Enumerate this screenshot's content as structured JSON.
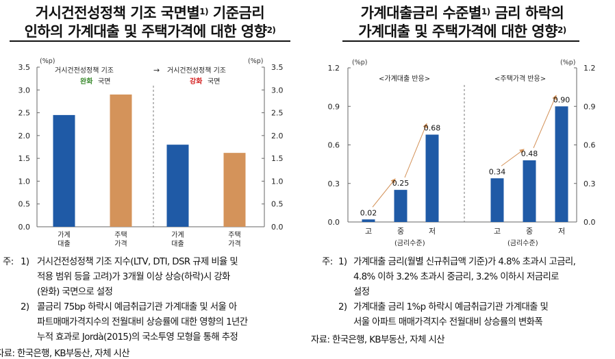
{
  "left": {
    "title": {
      "line1": "거시건전성정책 기조 국면별",
      "line1_sup": "1)",
      "line1_rest": " 기준금리",
      "line2": "인하의 가계대출 및 주택가격에 대한 영향",
      "line2_sup": "2)"
    },
    "unit_left": "(%p)",
    "unit_right": "(%p)",
    "annotation_easing_pre": "거시건전성정책 기조",
    "annotation_easing_word": "완화",
    "annotation_easing_post": "국면",
    "annotation_arrow": "→",
    "annotation_tightening_pre": "거시건전성정책 기조",
    "annotation_tightening_word": "강화",
    "annotation_tightening_post": "국면",
    "notes": [
      {
        "prefix": "주:",
        "marker": "1)",
        "lines": [
          "거시건전성정책 기조 지수(LTV, DTI, DSR 규제 비율 및",
          "적용 범위 등을 고려)가 3개월 이상 상승(하락)시 강화",
          "(완화) 국면으로 설정"
        ]
      },
      {
        "prefix": "",
        "marker": "2)",
        "lines": [
          "콜금리 75bp 하락시 예금취급기관 가계대출 및 서울 아",
          "파트매매가격지수의 전월대비 상승률에 대한 영향의 1년간",
          "누적 효과로 Jordà(2015)의 국소투영 모형을 통해 추정"
        ]
      }
    ],
    "source": "자료: 한국은행, KB부동산, 자체 시산"
  },
  "right": {
    "title": {
      "line1": "가계대출금리 수준별",
      "line1_sup": "1)",
      "line1_rest": " 금리 하락의",
      "line2": "가계대출 및 주택가격에 대한 영향",
      "line2_sup": "2)"
    },
    "unit_left": "(%p)",
    "unit_right": "(%p)",
    "panel_label_left": "<가계대출 반응>",
    "panel_label_right": "<주택가격 반응>",
    "group_label_left": "(금리수준)",
    "group_label_right": "(금리수준)",
    "notes": [
      {
        "prefix": "주:",
        "marker": "1)",
        "lines": [
          "가계대출 금리(월별 신규취급액 기준)가 4.8% 초과시 고금리,",
          "4.8% 이하 3.2% 초과시 중금리, 3.2% 이하시 저금리로",
          "설정"
        ]
      },
      {
        "prefix": "",
        "marker": "2)",
        "lines": [
          "가계대출 금리 1%p 하락시 예금취급기관 가계대출 및",
          "서울 아파트 매매가격지수 전월대비 상승률의 변화폭"
        ]
      }
    ],
    "source": "자료: 한국은행, KB부동산, 자체 시산"
  },
  "colors": {
    "blue": "#1f5aa6",
    "orange": "#d4935a",
    "green": "#3a8a2e",
    "red": "#d42020",
    "arrow": "#d4935a",
    "axis": "#666666"
  },
  "chart_data": [
    {
      "type": "bar",
      "categories": [
        "가계\n대출",
        "주택\n가격",
        "가계\n대출",
        "주택\n가격"
      ],
      "values": [
        2.45,
        2.9,
        1.8,
        1.62
      ],
      "bar_colors": [
        "blue",
        "orange",
        "blue",
        "orange"
      ],
      "ylim": [
        0,
        3.5
      ],
      "yticks": [
        "0.0",
        "0.5",
        "1.0",
        "1.5",
        "2.0",
        "2.5",
        "3.0",
        "3.5"
      ],
      "ylabel": "(%p)",
      "y2label": "(%p)"
    },
    {
      "type": "bar",
      "categories": [
        "고",
        "중",
        "저",
        "고",
        "중",
        "저"
      ],
      "values": [
        0.02,
        0.25,
        0.68,
        0.34,
        0.48,
        0.9
      ],
      "data_labels": [
        "0.02",
        "0.25",
        "0.68",
        "0.34",
        "0.48",
        "0.90"
      ],
      "ylim": [
        0,
        1.2
      ],
      "yticks": [
        "0.0",
        "0.3",
        "0.6",
        "0.9",
        "1.2"
      ],
      "ylabel": "(%p)",
      "y2label": "(%p)"
    }
  ]
}
